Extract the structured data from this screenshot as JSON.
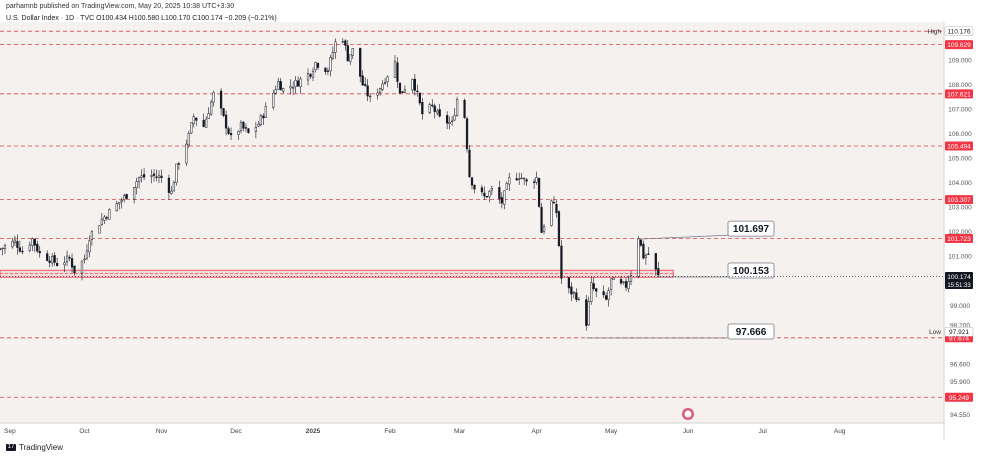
{
  "header": {
    "published": "parhamnb published on TradingView.com, May 20, 2025 10:38 UTC+3:30",
    "symbol_line": "U.S. Dollar Index · 1D · TVC  O100.434  H100.580  L100.170  C100.174  −0.209 (−0.21%)"
  },
  "footer": {
    "logo_text": "TradingView"
  },
  "chart_data": {
    "type": "candlestick",
    "title": "U.S. Dollar Index · 1D · TVC",
    "ylim": [
      94.2,
      110.55
    ],
    "x_range": [
      "2024-08-28",
      "2025-09-12"
    ],
    "y_ticks": [
      94.55,
      95.9,
      96.6,
      98.2,
      99.0,
      101.0,
      102.0,
      103.0,
      104.0,
      105.0,
      106.0,
      107.0,
      108.0,
      109.0
    ],
    "x_ticks": [
      {
        "label": "Sep",
        "date": "2024-09-01"
      },
      {
        "label": "Oct",
        "date": "2024-10-01"
      },
      {
        "label": "Nov",
        "date": "2024-11-01"
      },
      {
        "label": "Dec",
        "date": "2024-12-01"
      },
      {
        "label": "2025",
        "date": "2025-01-01"
      },
      {
        "label": "Feb",
        "date": "2025-02-01"
      },
      {
        "label": "Mar",
        "date": "2025-03-01"
      },
      {
        "label": "Apr",
        "date": "2025-04-01"
      },
      {
        "label": "May",
        "date": "2025-05-01"
      },
      {
        "label": "Jun",
        "date": "2025-06-01"
      },
      {
        "label": "Jul",
        "date": "2025-07-01"
      },
      {
        "label": "Aug",
        "date": "2025-08-01"
      }
    ],
    "close_path": [
      [
        "2024-08-28",
        101.3
      ],
      [
        "2024-09-03",
        101.6
      ],
      [
        "2024-09-06",
        101.2
      ],
      [
        "2024-09-10",
        101.7
      ],
      [
        "2024-09-13",
        101.1
      ],
      [
        "2024-09-17",
        100.9
      ],
      [
        "2024-09-20",
        100.7
      ],
      [
        "2024-09-25",
        100.9
      ],
      [
        "2024-09-27",
        100.4
      ],
      [
        "2024-10-01",
        100.9
      ],
      [
        "2024-10-03",
        101.8
      ],
      [
        "2024-10-08",
        102.5
      ],
      [
        "2024-10-14",
        103.1
      ],
      [
        "2024-10-18",
        103.5
      ],
      [
        "2024-10-23",
        104.2
      ],
      [
        "2024-10-28",
        104.3
      ],
      [
        "2024-11-01",
        104.2
      ],
      [
        "2024-11-05",
        103.6
      ],
      [
        "2024-11-07",
        104.6
      ],
      [
        "2024-11-12",
        105.9
      ],
      [
        "2024-11-14",
        106.7
      ],
      [
        "2024-11-18",
        106.3
      ],
      [
        "2024-11-22",
        107.6
      ],
      [
        "2024-11-25",
        106.9
      ],
      [
        "2024-11-29",
        105.8
      ],
      [
        "2024-12-03",
        106.3
      ],
      [
        "2024-12-06",
        106.0
      ],
      [
        "2024-12-10",
        106.4
      ],
      [
        "2024-12-13",
        107.0
      ],
      [
        "2024-12-18",
        108.1
      ],
      [
        "2024-12-20",
        107.8
      ],
      [
        "2024-12-26",
        108.1
      ],
      [
        "2024-12-31",
        108.5
      ],
      [
        "2025-01-02",
        108.9
      ],
      [
        "2025-01-07",
        108.6
      ],
      [
        "2025-01-10",
        109.7
      ],
      [
        "2025-01-13",
        109.9
      ],
      [
        "2025-01-15",
        109.1
      ],
      [
        "2025-01-17",
        109.4
      ],
      [
        "2025-01-21",
        108.0
      ],
      [
        "2025-01-24",
        107.4
      ],
      [
        "2025-01-28",
        107.9
      ],
      [
        "2025-01-31",
        108.4
      ],
      [
        "2025-02-03",
        108.9
      ],
      [
        "2025-02-05",
        107.6
      ],
      [
        "2025-02-10",
        108.3
      ],
      [
        "2025-02-14",
        106.8
      ],
      [
        "2025-02-18",
        107.1
      ],
      [
        "2025-02-21",
        106.6
      ],
      [
        "2025-02-26",
        106.4
      ],
      [
        "2025-02-28",
        107.4
      ],
      [
        "2025-03-03",
        106.7
      ],
      [
        "2025-03-05",
        104.3
      ],
      [
        "2025-03-07",
        103.8
      ],
      [
        "2025-03-11",
        103.4
      ],
      [
        "2025-03-14",
        103.7
      ],
      [
        "2025-03-18",
        103.2
      ],
      [
        "2025-03-21",
        104.1
      ],
      [
        "2025-03-25",
        104.3
      ],
      [
        "2025-03-28",
        104.0
      ],
      [
        "2025-04-01",
        104.2
      ],
      [
        "2025-04-03",
        102.0
      ],
      [
        "2025-04-07",
        103.2
      ],
      [
        "2025-04-09",
        102.8
      ],
      [
        "2025-04-11",
        100.1
      ],
      [
        "2025-04-14",
        99.6
      ],
      [
        "2025-04-17",
        99.4
      ],
      [
        "2025-04-21",
        98.3
      ],
      [
        "2025-04-23",
        99.8
      ],
      [
        "2025-04-25",
        99.5
      ],
      [
        "2025-04-29",
        99.2
      ],
      [
        "2025-05-01",
        100.0
      ],
      [
        "2025-05-05",
        99.8
      ],
      [
        "2025-05-07",
        99.8
      ],
      [
        "2025-05-09",
        100.3
      ],
      [
        "2025-05-12",
        101.8
      ],
      [
        "2025-05-14",
        101.0
      ],
      [
        "2025-05-16",
        101.1
      ],
      [
        "2025-05-19",
        100.4
      ],
      [
        "2025-05-20",
        100.174
      ]
    ],
    "horizontal_levels": [
      110.176,
      109.629,
      107.621,
      105.494,
      103.307,
      101.723,
      97.674,
      95.249
    ],
    "support_zone": [
      100.143,
      100.43
    ],
    "price_labels": [
      {
        "value": 109.629,
        "text": "109.629",
        "color": "#f23645"
      },
      {
        "value": 107.621,
        "text": "107.621",
        "color": "#f23645"
      },
      {
        "value": 105.494,
        "text": "105.494",
        "color": "#f23645"
      },
      {
        "value": 103.307,
        "text": "103.307",
        "color": "#f23645"
      },
      {
        "value": 101.723,
        "text": "101.723",
        "color": "#f23645"
      },
      {
        "value": 100.143,
        "text": "100.143",
        "color": "#f23645"
      },
      {
        "value": 97.674,
        "text": "97.674",
        "color": "#f23645"
      },
      {
        "value": 95.249,
        "text": "95.249",
        "color": "#f23645"
      }
    ],
    "current_price": {
      "value": 100.174,
      "text": "100.174",
      "countdown": "15:51:33",
      "color": "#131722"
    },
    "high": {
      "label": "High",
      "value": 110.176,
      "text": "110.176"
    },
    "low": {
      "label": "Low",
      "value": 97.921,
      "text": "97.921"
    },
    "callouts": [
      {
        "text": "101.697",
        "value": 101.697,
        "date": "2025-05-12"
      },
      {
        "text": "100.153",
        "value": 100.153,
        "date": "2025-05-20"
      },
      {
        "text": "97.666",
        "value": 97.666,
        "date": "2025-04-21"
      }
    ],
    "colors": {
      "background": "#f4f1ee",
      "level_line": "#e0404a",
      "zone_stroke": "#f23645",
      "zone_fill": "rgba(242,54,69,0.12)",
      "candle": "#131722"
    },
    "grid": false
  }
}
